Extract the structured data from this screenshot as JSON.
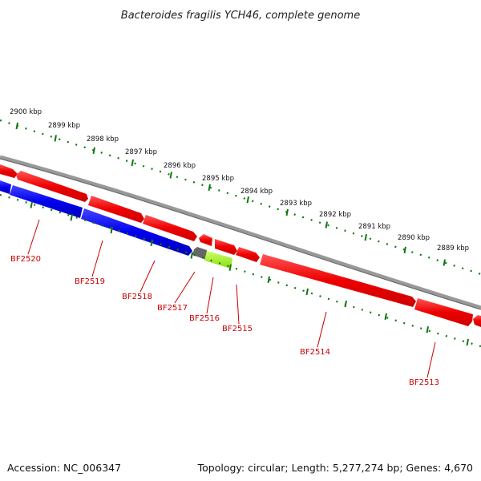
{
  "title": "Bacteroides fragilis YCH46, complete genome",
  "footer": {
    "accession": "Accession: NC_006347",
    "summary": "Topology: circular; Length: 5,277,274 bp; Genes: 4,670"
  },
  "colors": {
    "forward_gene": "#ee0000",
    "reverse_gene": "#0000ee",
    "gray_gene": "#666666",
    "green_gene": "#99ee22",
    "backbone": "#888888",
    "ticks": "#117711",
    "label": "#cc0000"
  },
  "kbp_scale": [
    {
      "label": "2900 kbp",
      "kbp": 2900
    },
    {
      "label": "2899 kbp",
      "kbp": 2899
    },
    {
      "label": "2898 kbp",
      "kbp": 2898
    },
    {
      "label": "2897 kbp",
      "kbp": 2897
    },
    {
      "label": "2896 kbp",
      "kbp": 2896
    },
    {
      "label": "2895 kbp",
      "kbp": 2895
    },
    {
      "label": "2894 kbp",
      "kbp": 2894
    },
    {
      "label": "2893 kbp",
      "kbp": 2893
    },
    {
      "label": "2892 kbp",
      "kbp": 2892
    },
    {
      "label": "2891 kbp",
      "kbp": 2891
    },
    {
      "label": "2890 kbp",
      "kbp": 2890
    },
    {
      "label": "2889 kbp",
      "kbp": 2889
    }
  ],
  "genes": [
    {
      "label": "BF2520",
      "strand": "reverse",
      "color": "blue"
    },
    {
      "label": "BF2519",
      "strand": "reverse",
      "color": "blue"
    },
    {
      "label": "BF2518",
      "strand": "reverse",
      "color": "blue"
    },
    {
      "label": "BF2517",
      "strand": "reverse",
      "color": "gray"
    },
    {
      "label": "BF2516",
      "strand": "reverse",
      "color": "green"
    },
    {
      "label": "BF2515",
      "strand": "forward",
      "color": "red"
    },
    {
      "label": "BF2514",
      "strand": "forward",
      "color": "red"
    },
    {
      "label": "BF2513",
      "strand": "forward",
      "color": "red"
    }
  ]
}
